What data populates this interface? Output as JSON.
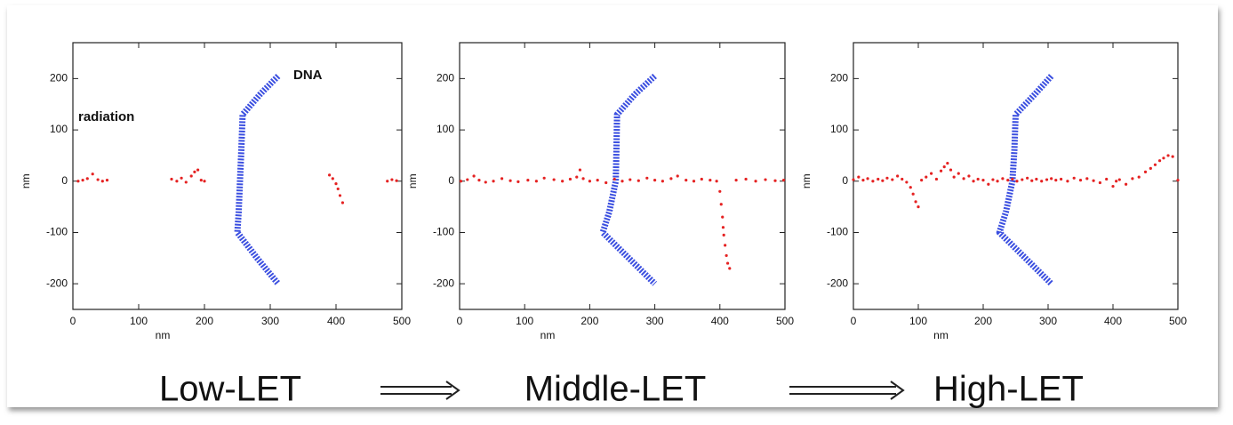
{
  "chart_data": [
    {
      "type": "scatter",
      "caption": "Low-LET",
      "xlabel": "nm",
      "ylabel": "nm",
      "annotations": [
        "radiation",
        "DNA"
      ],
      "xlim": [
        0,
        500
      ],
      "ylim": [
        -250,
        270
      ],
      "xticks": [
        0,
        100,
        200,
        300,
        400,
        500
      ],
      "yticks": [
        -200,
        -100,
        0,
        100,
        200
      ],
      "series": [
        {
          "style": "line",
          "color": "#3b4fe0",
          "x": [
            312,
            285,
            258,
            256,
            254,
            252,
            250,
            280,
            312
          ],
          "y": [
            205,
            170,
            130,
            60,
            0,
            -60,
            -100,
            -150,
            -200
          ]
        },
        {
          "style": "points",
          "color": "#e52222",
          "x": [
            8,
            15,
            22,
            30,
            38,
            45,
            52,
            150,
            158,
            165,
            172,
            180,
            185,
            190,
            195,
            200,
            390,
            395,
            400,
            403,
            406,
            410,
            478,
            485,
            492
          ],
          "y": [
            0,
            2,
            5,
            14,
            3,
            0,
            2,
            4,
            0,
            6,
            -2,
            10,
            18,
            22,
            2,
            0,
            12,
            5,
            -5,
            -15,
            -28,
            -42,
            0,
            3,
            1
          ]
        }
      ]
    },
    {
      "type": "scatter",
      "caption": "Middle-LET",
      "xlabel": "nm",
      "ylabel": "nm",
      "annotations": [],
      "xlim": [
        0,
        500
      ],
      "ylim": [
        -250,
        270
      ],
      "xticks": [
        0,
        100,
        200,
        300,
        400,
        500
      ],
      "yticks": [
        -200,
        -100,
        0,
        100,
        200
      ],
      "series": [
        {
          "style": "line",
          "color": "#3b4fe0",
          "x": [
            300,
            270,
            242,
            241,
            240,
            230,
            220,
            260,
            300
          ],
          "y": [
            205,
            170,
            130,
            60,
            0,
            -60,
            -100,
            -150,
            -200
          ]
        },
        {
          "style": "points",
          "color": "#e52222",
          "x": [
            2,
            12,
            22,
            30,
            40,
            52,
            65,
            78,
            90,
            105,
            118,
            130,
            145,
            158,
            170,
            180,
            185,
            190,
            200,
            212,
            225,
            238,
            250,
            262,
            275,
            288,
            300,
            312,
            325,
            335,
            348,
            360,
            372,
            385,
            395,
            400,
            402,
            404,
            405,
            406,
            408,
            410,
            412,
            415,
            425,
            440,
            455,
            470,
            485,
            498
          ],
          "y": [
            0,
            3,
            10,
            2,
            -2,
            0,
            5,
            1,
            -1,
            2,
            0,
            6,
            3,
            0,
            4,
            8,
            22,
            5,
            0,
            2,
            -3,
            4,
            0,
            3,
            1,
            6,
            2,
            0,
            5,
            10,
            2,
            0,
            4,
            2,
            0,
            -20,
            -45,
            -70,
            -90,
            -105,
            -125,
            -145,
            -160,
            -170,
            2,
            4,
            0,
            3,
            1,
            2
          ]
        }
      ]
    },
    {
      "type": "scatter",
      "caption": "High-LET",
      "xlabel": "nm",
      "ylabel": "nm",
      "annotations": [],
      "xlim": [
        0,
        500
      ],
      "ylim": [
        -250,
        270
      ],
      "xticks": [
        0,
        100,
        200,
        300,
        400,
        500
      ],
      "yticks": [
        -200,
        -100,
        0,
        100,
        200
      ],
      "series": [
        {
          "style": "line",
          "color": "#3b4fe0",
          "x": [
            305,
            280,
            250,
            248,
            245,
            235,
            225,
            265,
            305
          ],
          "y": [
            205,
            170,
            130,
            60,
            0,
            -60,
            -100,
            -150,
            -200
          ]
        },
        {
          "style": "points",
          "color": "#e52222",
          "x": [
            0,
            8,
            15,
            22,
            30,
            38,
            45,
            52,
            60,
            68,
            75,
            82,
            88,
            92,
            96,
            100,
            105,
            112,
            120,
            128,
            135,
            140,
            145,
            150,
            155,
            162,
            170,
            178,
            185,
            192,
            200,
            208,
            215,
            222,
            230,
            238,
            245,
            252,
            260,
            268,
            275,
            282,
            290,
            298,
            305,
            312,
            320,
            330,
            340,
            350,
            360,
            370,
            380,
            390,
            400,
            405,
            410,
            420,
            430,
            440,
            450,
            458,
            465,
            472,
            478,
            485,
            492,
            500
          ],
          "y": [
            3,
            8,
            2,
            5,
            0,
            4,
            1,
            6,
            3,
            10,
            4,
            -2,
            -12,
            -25,
            -40,
            -50,
            2,
            8,
            15,
            4,
            20,
            28,
            35,
            22,
            8,
            15,
            5,
            10,
            0,
            4,
            2,
            -6,
            3,
            0,
            5,
            2,
            4,
            0,
            3,
            6,
            1,
            4,
            0,
            3,
            5,
            2,
            4,
            0,
            6,
            2,
            5,
            1,
            -3,
            4,
            -10,
            0,
            3,
            -6,
            5,
            8,
            18,
            25,
            32,
            40,
            45,
            50,
            48,
            2
          ]
        }
      ]
    }
  ]
}
